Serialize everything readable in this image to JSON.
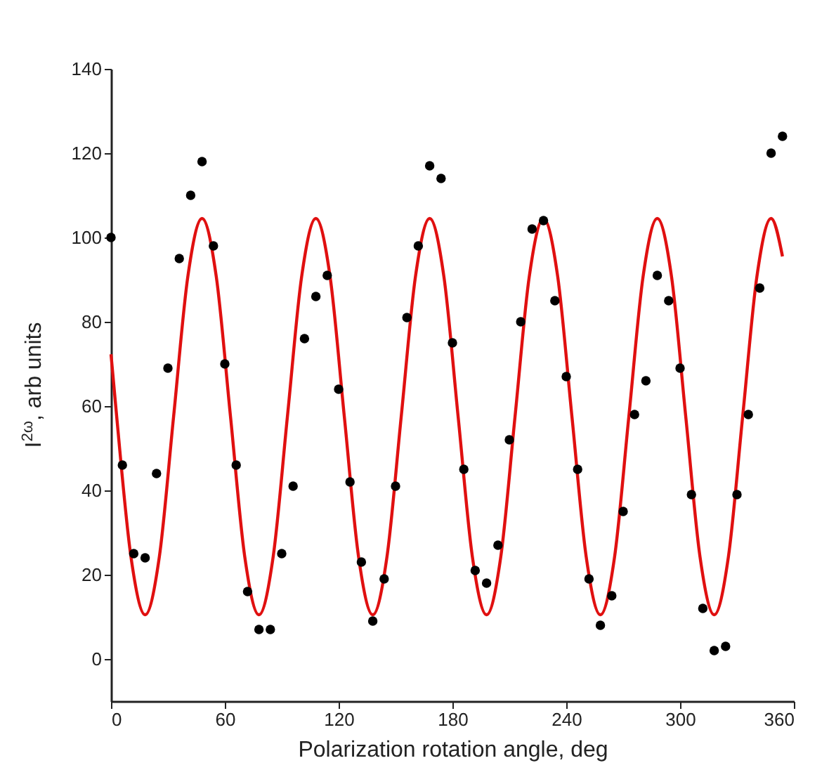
{
  "chart_data": {
    "type": "scatter",
    "xlabel": "Polarization rotation angle, deg",
    "ylabel": "I$^{2ω}$, arb units",
    "xlim": [
      0,
      360
    ],
    "xticks": [
      0,
      60,
      120,
      180,
      240,
      300,
      360
    ],
    "ylim": [
      -10,
      140
    ],
    "yticks": [
      0,
      20,
      40,
      60,
      80,
      100,
      120,
      140
    ],
    "grid": false,
    "marker": "circle",
    "series": [
      {
        "type": "scatter",
        "color": "#000000",
        "x": [
          0,
          6,
          12,
          18,
          24,
          30,
          36,
          42,
          48,
          54,
          60,
          66,
          72,
          78,
          84,
          90,
          96,
          102,
          108,
          114,
          120,
          126,
          132,
          138,
          144,
          150,
          156,
          162,
          168,
          174,
          180,
          186,
          192,
          198,
          204,
          210,
          216,
          222,
          228,
          234,
          240,
          246,
          252,
          258,
          264,
          270,
          276,
          282,
          288,
          294,
          300,
          306,
          312,
          318,
          324,
          330,
          336,
          342,
          348,
          354
        ],
        "values": [
          100,
          46,
          25,
          24,
          44,
          69,
          95,
          110,
          118,
          98,
          70,
          46,
          16,
          7,
          7,
          25,
          41,
          76,
          86,
          91,
          64,
          42,
          23,
          9,
          19,
          41,
          81,
          98,
          117,
          114,
          75,
          45,
          21,
          18,
          27,
          52,
          80,
          102,
          104,
          85,
          67,
          45,
          19,
          8,
          15,
          35,
          58,
          66,
          91,
          85,
          69,
          39,
          12,
          2,
          3,
          39,
          58,
          88,
          120,
          124
        ]
      },
      {
        "type": "line",
        "color": "#e01010",
        "marker": "none",
        "line_style": "solid",
        "x": [
          0,
          3,
          10.5,
          18,
          25.5,
          33,
          40.5,
          48,
          55.5,
          63,
          70.5,
          78,
          85.5,
          93,
          100.5,
          108,
          115.5,
          123,
          130.5,
          138,
          145.5,
          153,
          160.5,
          168,
          175.5,
          183,
          190.5,
          198,
          205.5,
          213,
          220.5,
          228,
          235.5,
          243,
          250.5,
          258,
          265.5,
          273,
          280.5,
          288,
          295.5,
          303,
          310.5,
          318,
          325.5,
          333,
          340.5,
          348,
          354
        ],
        "values": [
          72.3,
          57.5,
          24.3,
          10.5,
          24.3,
          57.5,
          90.7,
          104.5,
          90.7,
          57.5,
          24.3,
          10.5,
          24.3,
          57.5,
          90.7,
          104.5,
          90.7,
          57.5,
          24.3,
          10.5,
          24.3,
          57.5,
          90.7,
          104.5,
          90.7,
          57.5,
          24.3,
          10.5,
          24.3,
          57.5,
          90.7,
          104.5,
          90.7,
          57.5,
          24.3,
          10.5,
          24.3,
          57.5,
          90.7,
          104.5,
          90.7,
          57.5,
          24.3,
          10.5,
          24.3,
          57.5,
          90.7,
          104.5,
          95.5
        ]
      }
    ]
  }
}
